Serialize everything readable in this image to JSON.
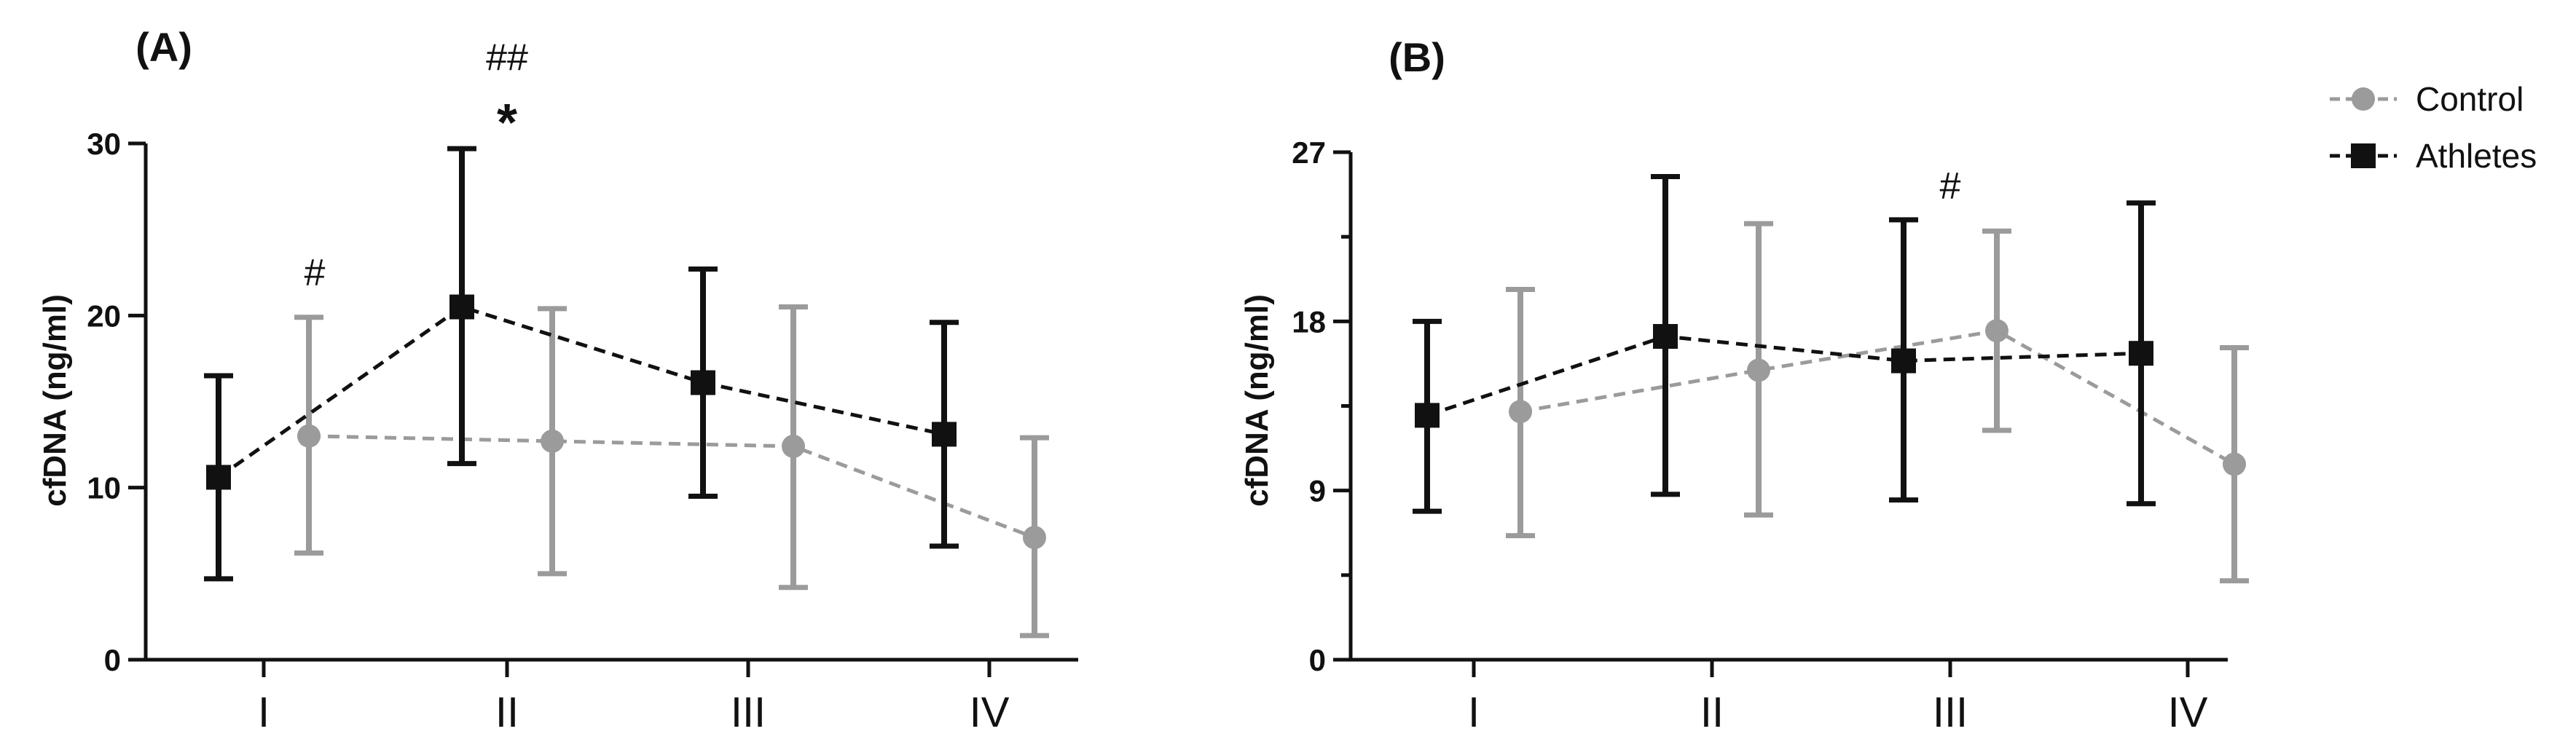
{
  "legend": {
    "position": "top-right",
    "entries": [
      {
        "name": "Control",
        "color": "#9b9b9b",
        "marker": "circle"
      },
      {
        "name": "Athletes",
        "color": "#111111",
        "marker": "square"
      }
    ]
  },
  "chart_data": [
    {
      "type": "line",
      "panel_label": "(A)",
      "title": "",
      "xlabel": "",
      "ylabel": "cfDNA (ng/ml)",
      "categories": [
        "I",
        "II",
        "III",
        "IV"
      ],
      "ylim": [
        0,
        30
      ],
      "yticks": [
        0,
        10,
        20,
        30
      ],
      "series": [
        {
          "name": "Athletes",
          "values": [
            10.6,
            20.5,
            16.1,
            13.1
          ],
          "err_low": [
            4.7,
            11.4,
            9.5,
            6.6
          ],
          "err_high": [
            16.5,
            29.7,
            22.7,
            19.6
          ]
        },
        {
          "name": "Control",
          "values": [
            13.0,
            12.7,
            12.4,
            7.1
          ],
          "err_low": [
            6.2,
            5.0,
            4.2,
            1.4
          ],
          "err_high": [
            19.9,
            20.4,
            20.5,
            12.9
          ]
        }
      ],
      "annotations": [
        {
          "category": "I",
          "text": "#",
          "y": 22.6
        },
        {
          "category": "II",
          "text": "*",
          "y": 31.6
        },
        {
          "category": "II",
          "text": "##",
          "y": 35.1
        }
      ]
    },
    {
      "type": "line",
      "panel_label": "(B)",
      "title": "",
      "xlabel": "",
      "ylabel": "cfDNA (ng/ml)",
      "categories": [
        "I",
        "II",
        "III",
        "IV"
      ],
      "ylim": [
        0,
        27
      ],
      "yticks": [
        0,
        9,
        18,
        27
      ],
      "minor_yticks": [
        4.5,
        13.5,
        22.5
      ],
      "series": [
        {
          "name": "Athletes",
          "values": [
            13.0,
            17.2,
            15.9,
            16.3
          ],
          "err_low": [
            7.9,
            8.8,
            8.5,
            8.3
          ],
          "err_high": [
            18.0,
            25.7,
            23.4,
            24.3
          ]
        },
        {
          "name": "Control",
          "values": [
            13.2,
            15.4,
            17.5,
            10.4
          ],
          "err_low": [
            6.6,
            7.7,
            12.2,
            4.2
          ],
          "err_high": [
            19.7,
            23.2,
            22.8,
            16.6
          ]
        }
      ],
      "annotations": [
        {
          "category": "III",
          "text": "#",
          "y": 25.3
        }
      ]
    }
  ]
}
